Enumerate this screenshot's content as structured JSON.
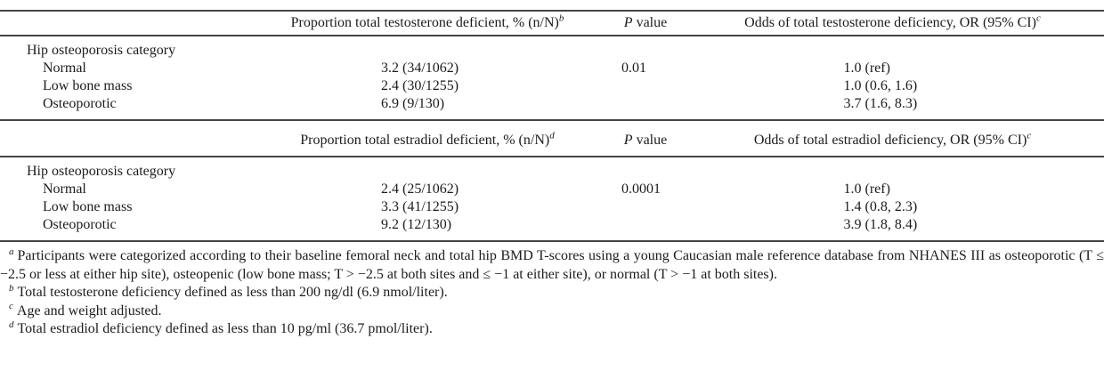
{
  "table": {
    "sections": [
      {
        "headers": {
          "proportion": "Proportion total testosterone deficient, % (n/N)",
          "proportion_marker": "b",
          "p_italic": "P",
          "p_rest": " value",
          "odds": "Odds of total testosterone deficiency, OR (95% CI)",
          "odds_marker": "c"
        },
        "group_label": "Hip osteoporosis category",
        "rows": [
          {
            "label": "Normal",
            "proportion": "3.2 (34/1062)",
            "p_value": "0.01",
            "odds": "1.0 (ref)"
          },
          {
            "label": "Low bone mass",
            "proportion": "2.4 (30/1255)",
            "p_value": "",
            "odds": "1.0 (0.6, 1.6)"
          },
          {
            "label": "Osteoporotic",
            "proportion": "6.9 (9/130)",
            "p_value": "",
            "odds": "3.7 (1.6, 8.3)"
          }
        ]
      },
      {
        "headers": {
          "proportion": "Proportion total estradiol deficient, % (n/N)",
          "proportion_marker": "d",
          "p_italic": "P",
          "p_rest": " value",
          "odds": "Odds of total estradiol deficiency, OR (95% CI)",
          "odds_marker": "c"
        },
        "group_label": "Hip osteoporosis category",
        "rows": [
          {
            "label": "Normal",
            "proportion": "2.4 (25/1062)",
            "p_value": "0.0001",
            "odds": "1.0 (ref)"
          },
          {
            "label": "Low bone mass",
            "proportion": "3.3 (41/1255)",
            "p_value": "",
            "odds": "1.4 (0.8, 2.3)"
          },
          {
            "label": "Osteoporotic",
            "proportion": "9.2 (12/130)",
            "p_value": "",
            "odds": "3.9 (1.8, 8.4)"
          }
        ]
      }
    ]
  },
  "footnotes": [
    {
      "marker": "a",
      "text": "Participants were categorized according to their baseline femoral neck and total hip BMD T-scores using a young Caucasian male reference database from NHANES III as osteoporotic (T ≤ −2.5 or less at either hip site), osteopenic (low bone mass; T > −2.5 at both sites and ≤ −1 at either site), or normal (T > −1 at both sites)."
    },
    {
      "marker": "b",
      "text": "Total testosterone deficiency defined as less than 200 ng/dl (6.9 nmol/liter)."
    },
    {
      "marker": "c",
      "text": "Age and weight adjusted."
    },
    {
      "marker": "d",
      "text": "Total estradiol deficiency defined as less than 10 pg/ml (36.7 pmol/liter)."
    }
  ],
  "colors": {
    "text": "#1c1c1c",
    "rule": "#454545",
    "background": "#ffffff"
  }
}
